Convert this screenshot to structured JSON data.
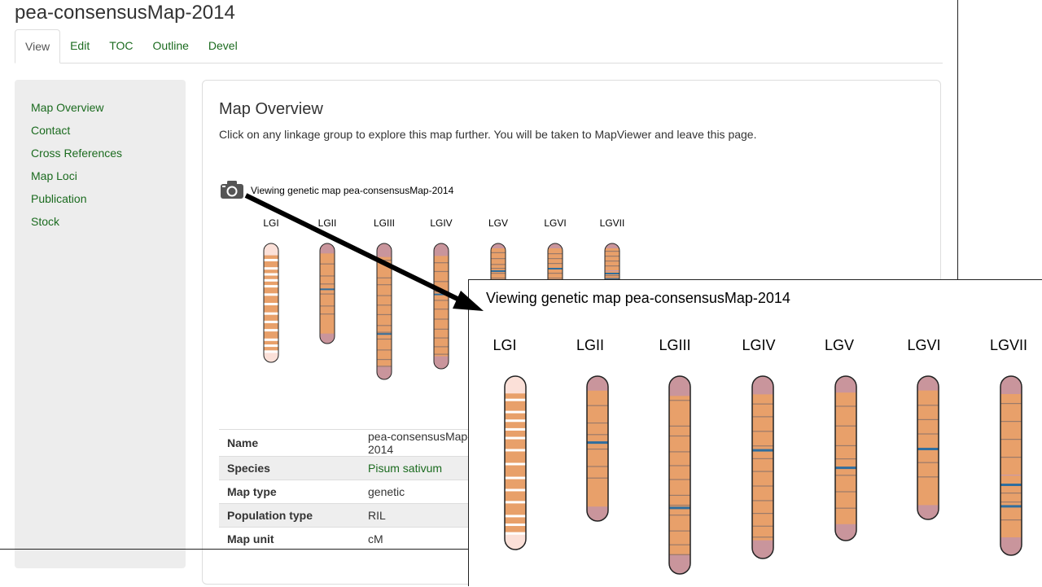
{
  "page_title": "pea-consensusMap-2014",
  "tabs": [
    "View",
    "Edit",
    "TOC",
    "Outline",
    "Devel"
  ],
  "sidebar": {
    "items": [
      "Map Overview",
      "Contact",
      "Cross References",
      "Map Loci",
      "Publication",
      "Stock"
    ]
  },
  "panel": {
    "title": "Map Overview",
    "description": "Click on any linkage group to explore this map further. You will be taken to MapViewer and leave this page.",
    "viewer_caption": "Viewing genetic map pea-consensusMap-2014",
    "camera_icon": "camera-icon"
  },
  "linkage_groups": [
    "LGI",
    "LGII",
    "LGIII",
    "LGIV",
    "LGV",
    "LGVI",
    "LGVII"
  ],
  "table": {
    "rows": [
      {
        "label": "Name",
        "value": "pea-consensusMap-2014"
      },
      {
        "label": "Species",
        "value": "Pisum sativum"
      },
      {
        "label": "Map type",
        "value": "genetic"
      },
      {
        "label": "Population type",
        "value": "RIL"
      },
      {
        "label": "Map unit",
        "value": "cM"
      }
    ]
  },
  "zoom": {
    "title": "Viewing genetic map pea-consensusMap-2014"
  },
  "colors": {
    "link": "#1b6b1f",
    "chromosome_fill": "#e8a06a",
    "chromosome_end": "#c9959c",
    "marker_blue": "#2f6e9e"
  }
}
